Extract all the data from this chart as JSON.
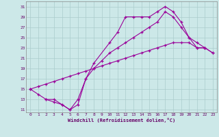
{
  "bg_color": "#cce8e8",
  "line_color": "#990099",
  "grid_color": "#aacccc",
  "xlim": [
    -0.5,
    23.5
  ],
  "ylim": [
    10.5,
    32
  ],
  "xticks": [
    0,
    1,
    2,
    3,
    4,
    5,
    6,
    7,
    8,
    9,
    10,
    11,
    12,
    13,
    14,
    15,
    16,
    17,
    18,
    19,
    20,
    21,
    22,
    23
  ],
  "yticks": [
    11,
    13,
    15,
    17,
    19,
    21,
    23,
    25,
    27,
    29,
    31
  ],
  "xlabel": "Windchill (Refroidissement éolien,°C)",
  "curve1_x": [
    0,
    1,
    2,
    3,
    4,
    5,
    6,
    7,
    8,
    10,
    11,
    12,
    13,
    14,
    15,
    16,
    17,
    18,
    19,
    20,
    21,
    22
  ],
  "curve1_y": [
    15,
    14,
    13,
    13,
    12,
    11,
    12,
    17,
    20,
    24,
    26,
    29,
    29,
    29,
    29,
    30,
    31,
    30,
    28,
    25,
    23,
    23
  ],
  "curve2_x": [
    2,
    3,
    4,
    5,
    6,
    7,
    8,
    9,
    10,
    11,
    12,
    13,
    14,
    15,
    16,
    17,
    18,
    19,
    20,
    21,
    22,
    23
  ],
  "curve2_y": [
    13,
    12.5,
    12,
    11,
    13,
    17,
    19,
    20.5,
    22,
    23,
    24,
    25,
    26,
    27,
    28,
    30,
    29,
    27,
    25,
    24,
    23,
    22
  ],
  "curve3_x": [
    0,
    1,
    2,
    3,
    4,
    5,
    6,
    7,
    8,
    9,
    10,
    11,
    12,
    13,
    14,
    15,
    16,
    17,
    18,
    19,
    20,
    21,
    22,
    23
  ],
  "curve3_y": [
    15,
    15.5,
    16,
    16.5,
    17,
    17.5,
    18,
    18.5,
    19,
    19.5,
    20,
    20.5,
    21,
    21.5,
    22,
    22.5,
    23,
    23.5,
    24,
    24,
    24,
    23,
    23,
    22
  ]
}
